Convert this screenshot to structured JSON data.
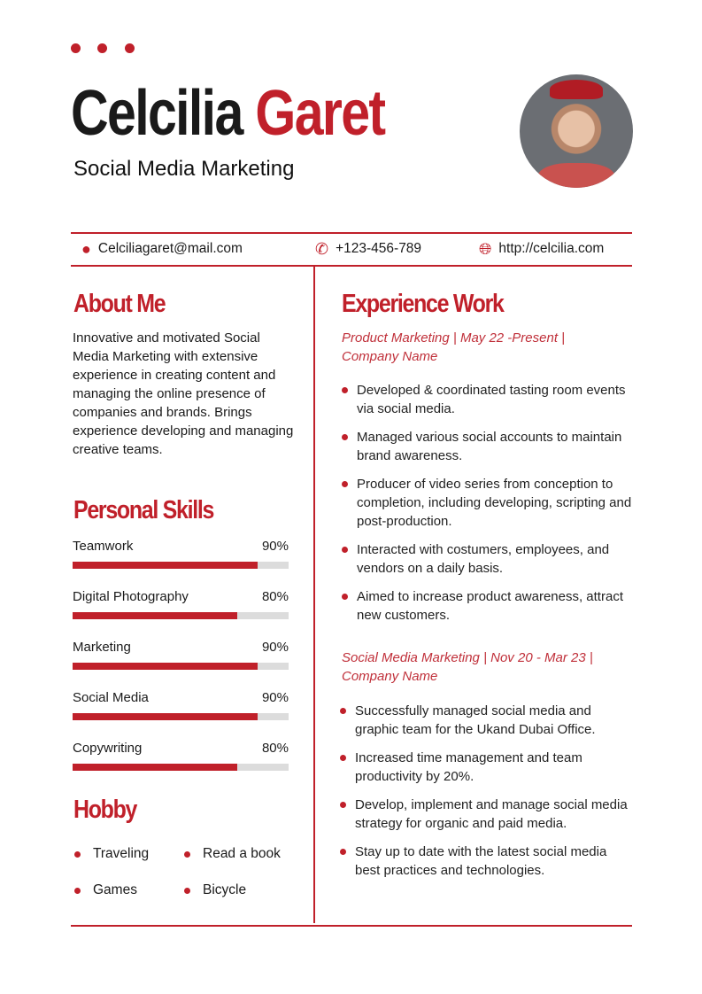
{
  "header": {
    "first_name": "Celcilia",
    "last_name": "Garet",
    "role": "Social Media Marketing"
  },
  "contact": {
    "email": "Celciliagaret@mail.com",
    "phone": "+123-456-789",
    "website": "http://celcilia.com"
  },
  "about": {
    "title": "About Me",
    "text": "Innovative and motivated Social Media Marketing with extensive experience in creating content and managing the online presence of companies and brands. Brings experience developing and managing creative teams."
  },
  "skills": {
    "title": "Personal Skills",
    "items": [
      {
        "label": "Teamwork",
        "value": "90%",
        "level": 90
      },
      {
        "label": "Digital Photography",
        "value": "80%",
        "level": 80
      },
      {
        "label": "Marketing",
        "value": "90%",
        "level": 90
      },
      {
        "label": "Social Media",
        "value": "90%",
        "level": 90
      },
      {
        "label": "Copywriting",
        "value": "80%",
        "level": 80
      }
    ]
  },
  "hobby": {
    "title": "Hobby",
    "items": [
      "Traveling",
      "Read a book",
      "Games",
      "Bicycle"
    ]
  },
  "experience": {
    "title": "Experience Work",
    "jobs": [
      {
        "heading": "Product Marketing | May 22 -Present | Company Name",
        "points": [
          "Developed & coordinated tasting room events via social media.",
          "Managed various social accounts to maintain brand awareness.",
          "Producer of video series from conception to completion, including developing, scripting and post-production.",
          "Interacted with costumers, employees, and vendors on a daily basis.",
          "Aimed to increase product awareness, attract new customers."
        ]
      },
      {
        "heading": "Social Media Marketing | Nov 20 - Mar 23 | Company Name",
        "points": [
          "Successfully managed social media and graphic team for the Ukand Dubai Office.",
          "Increased time management and team productivity by 20%.",
          "Develop, implement and manage social media strategy for organic and paid media.",
          "Stay up to date with the latest social media best practices and technologies."
        ]
      }
    ]
  },
  "colors": {
    "accent": "#c0202a"
  }
}
